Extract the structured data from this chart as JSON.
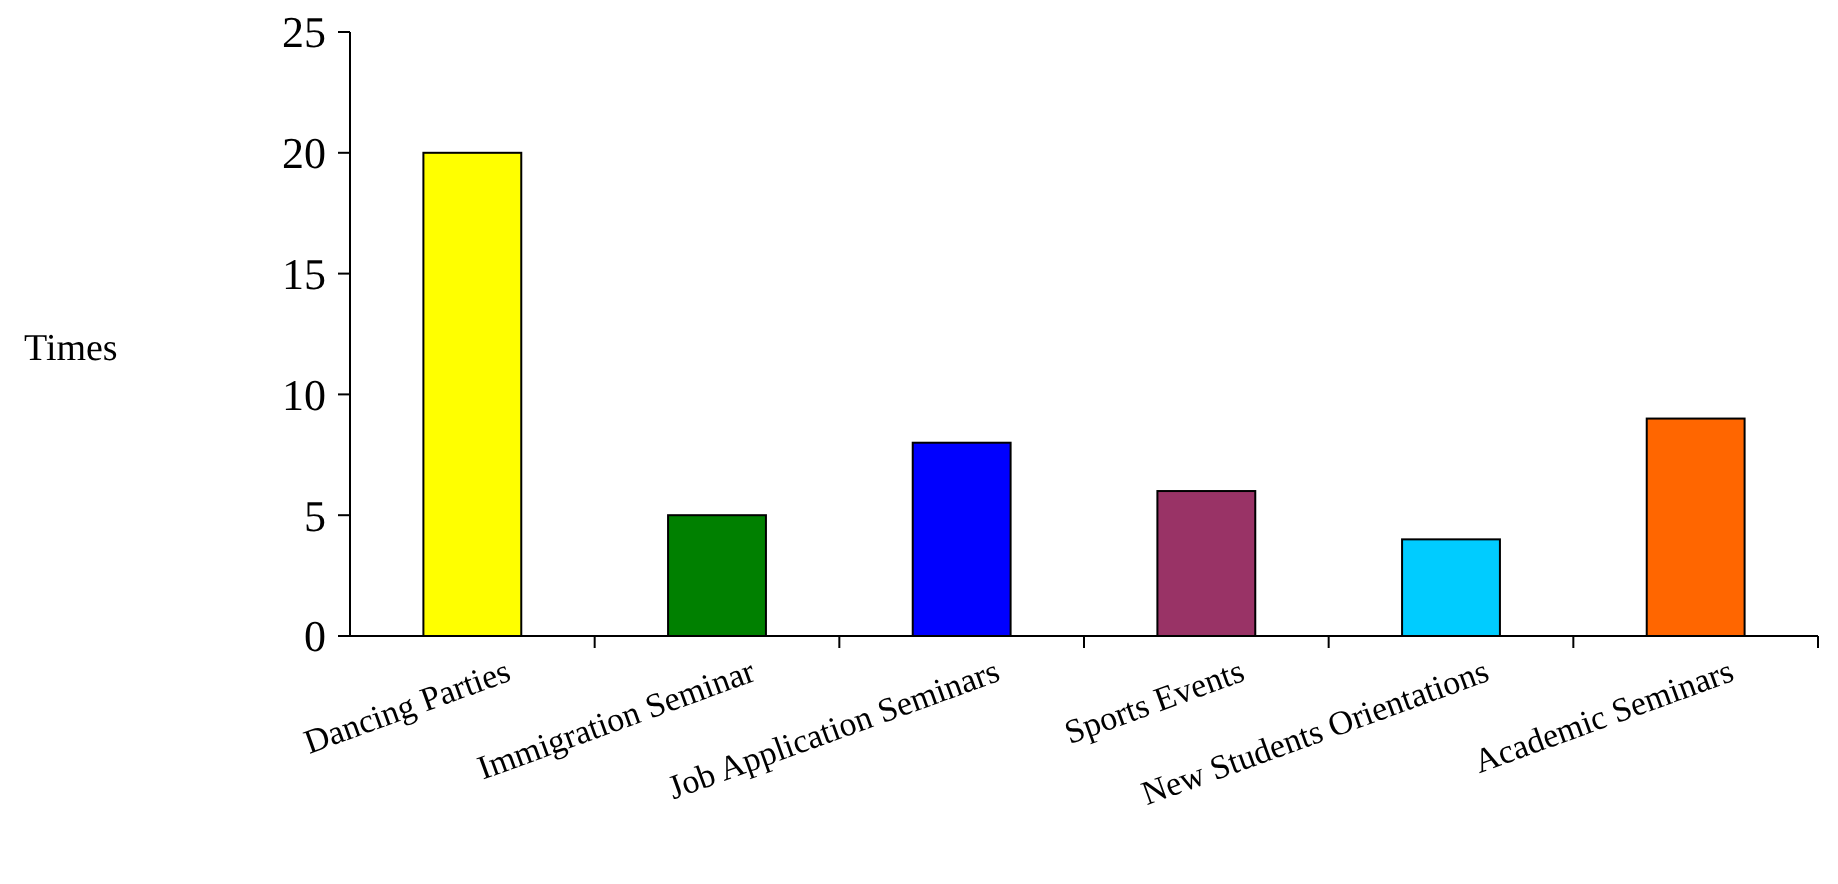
{
  "chart_data": {
    "type": "bar",
    "ylabel": "Times",
    "categories": [
      "Dancing Parties",
      "Immigration Seminar",
      "Job Application Seminars",
      "Sports Events",
      "New Students Orientations",
      "Academic Seminars"
    ],
    "values": [
      20,
      5,
      8,
      6,
      4,
      9
    ],
    "colors": [
      "#ffff00",
      "#008000",
      "#0000ff",
      "#993366",
      "#00ccff",
      "#ff6600"
    ],
    "ylim": [
      0,
      25
    ],
    "yticks": [
      0,
      5,
      10,
      15,
      20,
      25
    ],
    "grid": false
  }
}
